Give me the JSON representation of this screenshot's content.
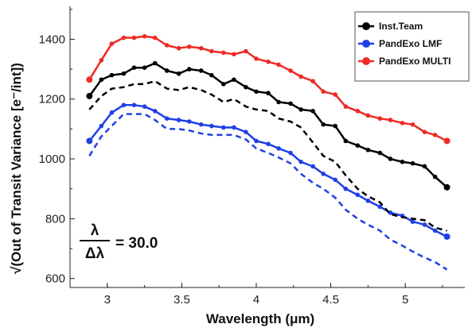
{
  "chart_data": {
    "type": "line",
    "xlabel": "Wavelength (μm)",
    "ylabel": "√(Out of Transit Variance [e⁻/int])",
    "xlim": [
      2.75,
      5.4
    ],
    "ylim": [
      570,
      1510
    ],
    "xticks": [
      "3",
      "3.5",
      "4",
      "4.5",
      "5"
    ],
    "yticks": [
      "600",
      "800",
      "1000",
      "1200",
      "1400"
    ],
    "grid": false,
    "legend_position": "top-right",
    "annotation": {
      "numerator": "λ",
      "denominator": "Δλ",
      "value": "= 30.0"
    },
    "series": [
      {
        "name": "Inst.Team",
        "color": "#000000",
        "style": "solid-markers",
        "x": [
          2.88,
          2.96,
          3.03,
          3.11,
          3.18,
          3.25,
          3.32,
          3.4,
          3.48,
          3.55,
          3.63,
          3.7,
          3.78,
          3.85,
          3.93,
          4.0,
          4.08,
          4.15,
          4.23,
          4.3,
          4.38,
          4.45,
          4.53,
          4.6,
          4.68,
          4.75,
          4.83,
          4.9,
          4.98,
          5.05,
          5.13,
          5.2,
          5.28
        ],
        "y": [
          1210,
          1265,
          1280,
          1285,
          1305,
          1305,
          1320,
          1295,
          1285,
          1300,
          1295,
          1280,
          1250,
          1265,
          1240,
          1225,
          1220,
          1190,
          1185,
          1165,
          1160,
          1115,
          1110,
          1060,
          1045,
          1030,
          1020,
          1000,
          990,
          985,
          975,
          940,
          905
        ]
      },
      {
        "name": "PandExo LMF",
        "color": "#1f3fe6",
        "style": "solid-markers",
        "x": [
          2.88,
          2.96,
          3.03,
          3.11,
          3.18,
          3.25,
          3.32,
          3.4,
          3.48,
          3.55,
          3.63,
          3.7,
          3.78,
          3.85,
          3.93,
          4.0,
          4.08,
          4.15,
          4.23,
          4.3,
          4.38,
          4.45,
          4.53,
          4.6,
          4.68,
          4.75,
          4.83,
          4.9,
          4.98,
          5.05,
          5.13,
          5.2,
          5.28
        ],
        "y": [
          1060,
          1110,
          1155,
          1180,
          1180,
          1175,
          1160,
          1135,
          1130,
          1125,
          1115,
          1110,
          1105,
          1105,
          1090,
          1060,
          1050,
          1035,
          1020,
          990,
          975,
          950,
          930,
          900,
          880,
          860,
          840,
          820,
          810,
          790,
          780,
          760,
          740
        ]
      },
      {
        "name": "PandExo MULTI",
        "color": "#ee2a24",
        "style": "solid-markers",
        "x": [
          2.88,
          2.96,
          3.03,
          3.11,
          3.18,
          3.25,
          3.32,
          3.4,
          3.48,
          3.55,
          3.63,
          3.7,
          3.78,
          3.85,
          3.93,
          4.0,
          4.08,
          4.15,
          4.23,
          4.3,
          4.38,
          4.45,
          4.53,
          4.6,
          4.68,
          4.75,
          4.83,
          4.9,
          4.98,
          5.05,
          5.13,
          5.2,
          5.28
        ],
        "y": [
          1265,
          1330,
          1385,
          1405,
          1405,
          1410,
          1405,
          1380,
          1370,
          1375,
          1370,
          1360,
          1355,
          1350,
          1360,
          1335,
          1325,
          1315,
          1295,
          1275,
          1260,
          1225,
          1215,
          1175,
          1160,
          1145,
          1135,
          1130,
          1120,
          1115,
          1090,
          1080,
          1060
        ]
      },
      {
        "name": "",
        "color": "#000000",
        "style": "dashed",
        "x": [
          2.88,
          2.96,
          3.03,
          3.11,
          3.18,
          3.25,
          3.32,
          3.4,
          3.48,
          3.55,
          3.63,
          3.7,
          3.78,
          3.85,
          3.93,
          4.0,
          4.08,
          4.15,
          4.23,
          4.3,
          4.38,
          4.45,
          4.53,
          4.6,
          4.68,
          4.75,
          4.83,
          4.9,
          4.98,
          5.05,
          5.13,
          5.2,
          5.28
        ],
        "y": [
          1165,
          1210,
          1235,
          1240,
          1250,
          1250,
          1260,
          1235,
          1230,
          1240,
          1230,
          1215,
          1190,
          1200,
          1175,
          1165,
          1160,
          1135,
          1125,
          1105,
          1055,
          1010,
          990,
          945,
          900,
          875,
          855,
          815,
          805,
          800,
          795,
          770,
          760
        ]
      },
      {
        "name": "",
        "color": "#1f3fe6",
        "style": "dashed",
        "x": [
          2.88,
          2.96,
          3.03,
          3.11,
          3.18,
          3.25,
          3.32,
          3.4,
          3.48,
          3.55,
          3.63,
          3.7,
          3.78,
          3.85,
          3.93,
          4.0,
          4.08,
          4.15,
          4.23,
          4.3,
          4.38,
          4.45,
          4.53,
          4.6,
          4.68,
          4.75,
          4.83,
          4.9,
          4.98,
          5.05,
          5.13,
          5.2,
          5.28
        ],
        "y": [
          1010,
          1075,
          1110,
          1150,
          1150,
          1150,
          1130,
          1100,
          1100,
          1095,
          1085,
          1080,
          1080,
          1080,
          1065,
          1035,
          1020,
          1005,
          985,
          950,
          920,
          900,
          870,
          830,
          800,
          780,
          760,
          730,
          710,
          690,
          670,
          655,
          630
        ]
      }
    ]
  }
}
